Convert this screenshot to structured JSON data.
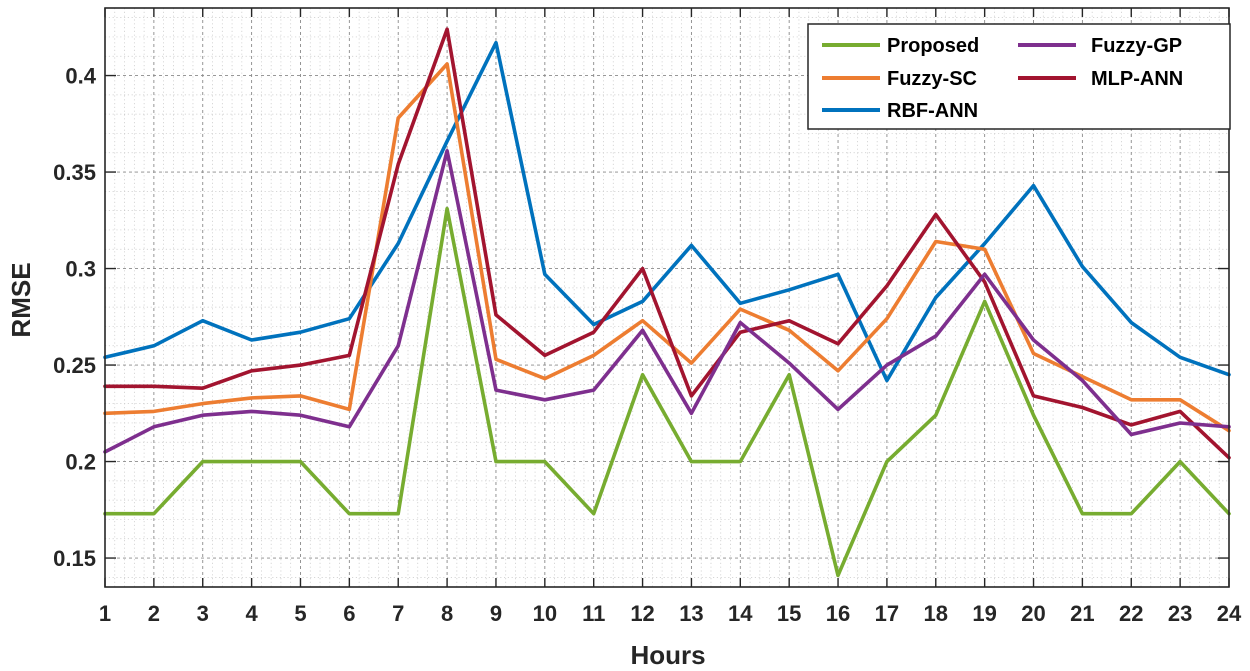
{
  "chart_data": {
    "type": "line",
    "title": "",
    "xlabel": "Hours",
    "ylabel": "RMSE",
    "x": [
      1,
      2,
      3,
      4,
      5,
      6,
      7,
      8,
      9,
      10,
      11,
      12,
      13,
      14,
      15,
      16,
      17,
      18,
      19,
      20,
      21,
      22,
      23,
      24
    ],
    "x_tick_labels": [
      "1",
      "2",
      "3",
      "4",
      "5",
      "6",
      "7",
      "8",
      "9",
      "10",
      "11",
      "12",
      "13",
      "14",
      "15",
      "16",
      "17",
      "18",
      "19",
      "20",
      "21",
      "22",
      "23",
      "24"
    ],
    "xlim": [
      1,
      24
    ],
    "ylim": [
      0.135,
      0.435
    ],
    "y_ticks": [
      0.15,
      0.2,
      0.25,
      0.3,
      0.35,
      0.4
    ],
    "y_tick_labels": [
      "0.15",
      "0.2",
      "0.25",
      "0.3",
      "0.35",
      "0.4"
    ],
    "grid": "major and minor",
    "legend_position": "top-right",
    "series": [
      {
        "name": "Proposed",
        "color": "#77AC30",
        "values": [
          0.173,
          0.173,
          0.2,
          0.2,
          0.2,
          0.173,
          0.173,
          0.331,
          0.2,
          0.2,
          0.173,
          0.245,
          0.2,
          0.2,
          0.245,
          0.141,
          0.2,
          0.224,
          0.283,
          0.224,
          0.173,
          0.173,
          0.2,
          0.173
        ]
      },
      {
        "name": "Fuzzy-SC",
        "color": "#ED7D31",
        "values": [
          0.225,
          0.226,
          0.23,
          0.233,
          0.234,
          0.227,
          0.378,
          0.406,
          0.253,
          0.243,
          0.255,
          0.273,
          0.251,
          0.279,
          0.268,
          0.247,
          0.274,
          0.314,
          0.31,
          0.256,
          0.244,
          0.232,
          0.232,
          0.216
        ]
      },
      {
        "name": "RBF-ANN",
        "color": "#0072BD",
        "values": [
          0.254,
          0.26,
          0.273,
          0.263,
          0.267,
          0.274,
          0.313,
          0.366,
          0.417,
          0.297,
          0.271,
          0.283,
          0.312,
          0.282,
          0.289,
          0.297,
          0.242,
          0.285,
          0.313,
          0.343,
          0.301,
          0.272,
          0.254,
          0.245
        ]
      },
      {
        "name": "Fuzzy-GP",
        "color": "#7E2F8E",
        "values": [
          0.205,
          0.218,
          0.224,
          0.226,
          0.224,
          0.218,
          0.26,
          0.361,
          0.237,
          0.232,
          0.237,
          0.268,
          0.225,
          0.272,
          0.251,
          0.227,
          0.25,
          0.265,
          0.297,
          0.263,
          0.242,
          0.214,
          0.22,
          0.218
        ]
      },
      {
        "name": "MLP-ANN",
        "color": "#A2142F",
        "values": [
          0.239,
          0.239,
          0.238,
          0.247,
          0.25,
          0.255,
          0.354,
          0.424,
          0.276,
          0.255,
          0.267,
          0.3,
          0.234,
          0.267,
          0.273,
          0.261,
          0.291,
          0.328,
          0.293,
          0.234,
          0.228,
          0.219,
          0.226,
          0.202
        ]
      }
    ]
  },
  "legend": {
    "items": [
      {
        "label": "Proposed",
        "color": "#77AC30"
      },
      {
        "label": "Fuzzy-GP",
        "color": "#7E2F8E"
      },
      {
        "label": "Fuzzy-SC",
        "color": "#ED7D31"
      },
      {
        "label": "MLP-ANN",
        "color": "#A2142F"
      },
      {
        "label": "RBF-ANN",
        "color": "#0072BD"
      }
    ]
  }
}
